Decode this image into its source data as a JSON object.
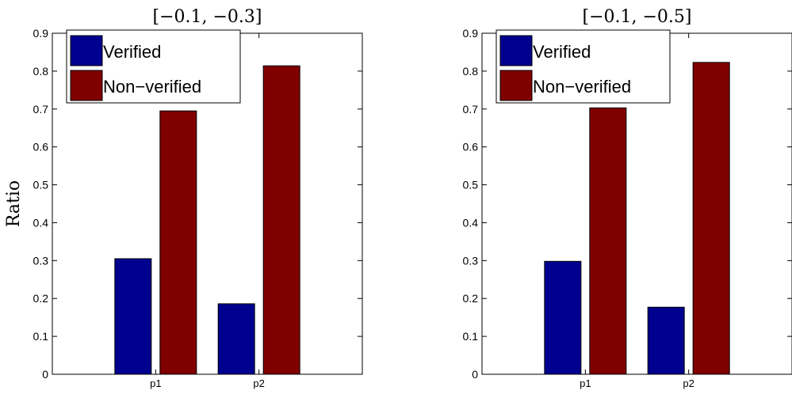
{
  "chart_data": [
    {
      "type": "bar",
      "title": "[−0.1, −0.3]",
      "xlabel": "",
      "ylabel": "Ratio",
      "categories": [
        "p1",
        "p2"
      ],
      "ylim": [
        0,
        0.9
      ],
      "yticks": [
        "0",
        "0.1",
        "0.2",
        "0.3",
        "0.4",
        "0.5",
        "0.6",
        "0.7",
        "0.8",
        "0.9"
      ],
      "series": [
        {
          "name": "Verified",
          "values": [
            0.305,
            0.186
          ]
        },
        {
          "name": "Non−verified",
          "values": [
            0.695,
            0.814
          ]
        }
      ],
      "legend": "top-left",
      "grid": false
    },
    {
      "type": "bar",
      "title": "[−0.1, −0.5]",
      "xlabel": "",
      "ylabel": "",
      "categories": [
        "p1",
        "p2"
      ],
      "ylim": [
        0,
        0.9
      ],
      "yticks": [
        "0",
        "0.1",
        "0.2",
        "0.3",
        "0.4",
        "0.5",
        "0.6",
        "0.7",
        "0.8",
        "0.9"
      ],
      "series": [
        {
          "name": "Verified",
          "values": [
            0.298,
            0.177
          ]
        },
        {
          "name": "Non−verified",
          "values": [
            0.703,
            0.823
          ]
        }
      ],
      "legend": "top-left",
      "grid": false
    }
  ],
  "colors": {
    "Verified": "#00008f",
    "Non−verified": "#800000"
  }
}
